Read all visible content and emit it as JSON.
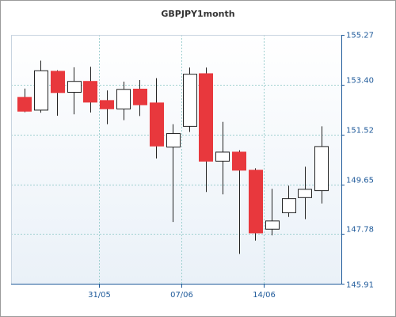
{
  "chart_data": {
    "type": "candlestick",
    "title": "GBPJPY1month",
    "grid": true,
    "y_axis_position": "right",
    "ylim": [
      145.91,
      155.27
    ],
    "y_ticks": [
      "155.27",
      "153.40",
      "151.52",
      "149.65",
      "147.78",
      "145.91"
    ],
    "y_tick_values": [
      155.27,
      153.4,
      151.52,
      149.65,
      147.78,
      145.91
    ],
    "x_tick_labels": [
      {
        "label": "31/05",
        "after_index": 4
      },
      {
        "label": "07/06",
        "after_index": 9
      },
      {
        "label": "14/06",
        "after_index": 14
      }
    ],
    "colors": {
      "up_fill": "#ffffff",
      "down_fill": "#e8383d",
      "wick": "#222222",
      "grid": "#9fd0d0",
      "axis": "#1f5a9a",
      "background_top": "#ffffff",
      "background_bottom": "#eaf1f8"
    },
    "candles": [
      {
        "open": 152.92,
        "high": 153.25,
        "low": 152.36,
        "close": 152.4
      },
      {
        "open": 152.44,
        "high": 154.3,
        "low": 152.34,
        "close": 153.92
      },
      {
        "open": 153.9,
        "high": 153.94,
        "low": 152.23,
        "close": 153.1
      },
      {
        "open": 153.11,
        "high": 154.05,
        "low": 152.28,
        "close": 153.52
      },
      {
        "open": 153.52,
        "high": 154.07,
        "low": 152.35,
        "close": 152.74
      },
      {
        "open": 152.8,
        "high": 153.18,
        "low": 151.91,
        "close": 152.49
      },
      {
        "open": 152.48,
        "high": 153.51,
        "low": 152.06,
        "close": 153.22
      },
      {
        "open": 153.23,
        "high": 153.57,
        "low": 152.22,
        "close": 152.64
      },
      {
        "open": 152.71,
        "high": 153.64,
        "low": 150.62,
        "close": 151.09
      },
      {
        "open": 151.05,
        "high": 151.91,
        "low": 148.23,
        "close": 151.56
      },
      {
        "open": 151.83,
        "high": 154.04,
        "low": 151.62,
        "close": 153.79
      },
      {
        "open": 153.81,
        "high": 154.04,
        "low": 149.36,
        "close": 150.52
      },
      {
        "open": 150.52,
        "high": 152.0,
        "low": 149.27,
        "close": 150.86
      },
      {
        "open": 150.86,
        "high": 150.93,
        "low": 147.03,
        "close": 150.18
      },
      {
        "open": 150.18,
        "high": 150.25,
        "low": 147.53,
        "close": 147.82
      },
      {
        "open": 147.96,
        "high": 149.48,
        "low": 147.73,
        "close": 148.27
      },
      {
        "open": 148.58,
        "high": 149.6,
        "low": 148.42,
        "close": 149.11
      },
      {
        "open": 149.15,
        "high": 150.31,
        "low": 148.34,
        "close": 149.46
      },
      {
        "open": 149.41,
        "high": 151.83,
        "low": 148.93,
        "close": 151.07
      }
    ]
  }
}
